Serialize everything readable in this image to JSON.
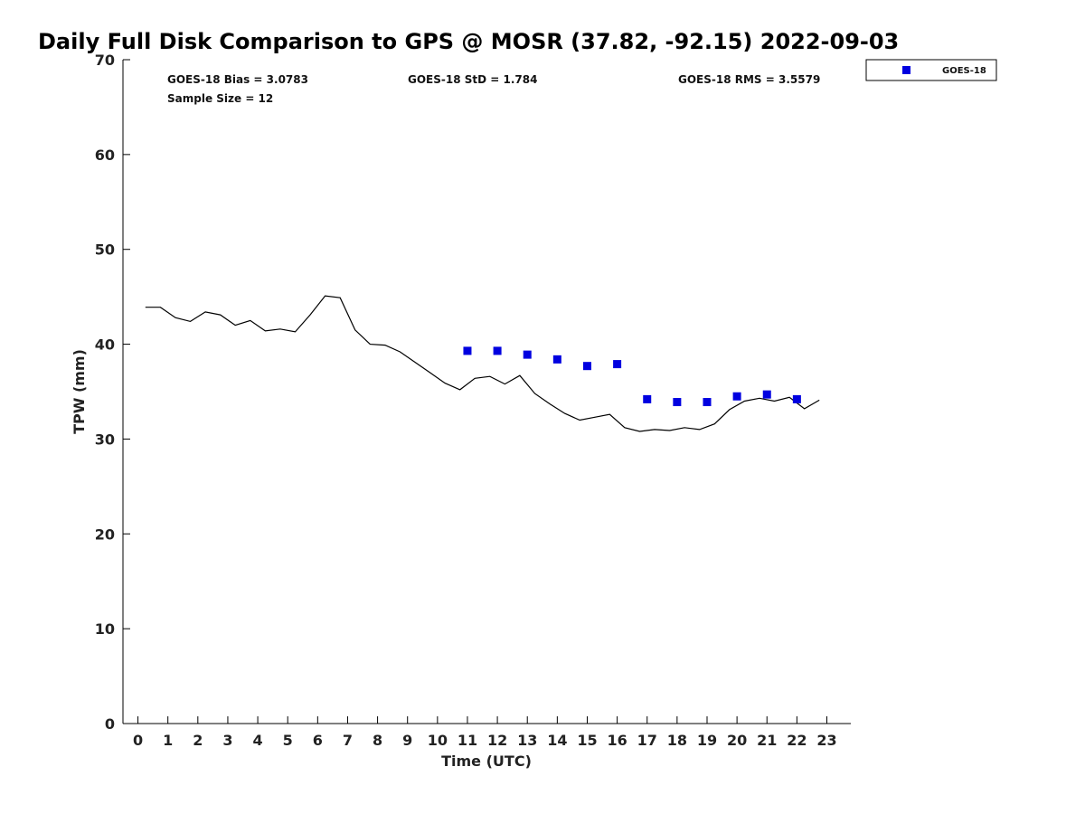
{
  "chart_data": {
    "type": "scatter",
    "title": "Daily Full Disk Comparison to GPS @ MOSR (37.82, -92.15) 2022-09-03",
    "xlabel": "Time (UTC)",
    "ylabel": "TPW (mm)",
    "xlim": [
      -0.5,
      23.8
    ],
    "ylim": [
      0,
      70
    ],
    "x_ticks": [
      0,
      1,
      2,
      3,
      4,
      5,
      6,
      7,
      8,
      9,
      10,
      11,
      12,
      13,
      14,
      15,
      16,
      17,
      18,
      19,
      20,
      21,
      22,
      23
    ],
    "y_ticks": [
      0,
      10,
      20,
      30,
      40,
      50,
      60,
      70
    ],
    "grid": false,
    "legend_position": "top-right",
    "stats": {
      "bias": "GOES-18 Bias = 3.0783",
      "std": "GOES-18 StD = 1.784",
      "rms": "GOES-18 RMS = 3.5579",
      "sample": "Sample Size = 12"
    },
    "series": [
      {
        "name": "GPS",
        "kind": "line",
        "color": "#000000",
        "x": [
          0.25,
          0.75,
          1.25,
          1.75,
          2.25,
          2.75,
          3.25,
          3.75,
          4.25,
          4.75,
          5.25,
          5.75,
          6.25,
          6.75,
          7.25,
          7.75,
          8.25,
          8.75,
          9.25,
          9.75,
          10.25,
          10.75,
          11.25,
          11.75,
          12.25,
          12.75,
          13.25,
          13.75,
          14.25,
          14.75,
          15.25,
          15.75,
          16.25,
          16.75,
          17.25,
          17.75,
          18.25,
          18.75,
          19.25,
          19.75,
          20.25,
          20.75,
          21.25,
          21.75,
          22.25,
          22.75
        ],
        "y": [
          43.9,
          43.9,
          42.8,
          42.4,
          43.4,
          43.1,
          42.0,
          42.5,
          41.4,
          41.6,
          41.3,
          43.1,
          45.1,
          44.9,
          41.5,
          40.0,
          39.9,
          39.2,
          38.1,
          37.0,
          35.9,
          35.2,
          36.4,
          36.6,
          35.8,
          36.7,
          34.8,
          33.7,
          32.7,
          32.0,
          32.3,
          32.6,
          31.2,
          30.8,
          31.0,
          30.9,
          31.2,
          31.0,
          31.6,
          33.1,
          34.0,
          34.3,
          34.0,
          34.4,
          33.2,
          34.1
        ]
      },
      {
        "name": "GOES-18",
        "kind": "scatter",
        "color": "#0000e0",
        "x": [
          11,
          12,
          13,
          14,
          15,
          16,
          17,
          18,
          19,
          20,
          21,
          22
        ],
        "y": [
          39.3,
          39.3,
          38.9,
          38.4,
          37.7,
          37.9,
          34.2,
          33.9,
          33.9,
          34.5,
          34.7,
          34.2
        ]
      }
    ]
  }
}
